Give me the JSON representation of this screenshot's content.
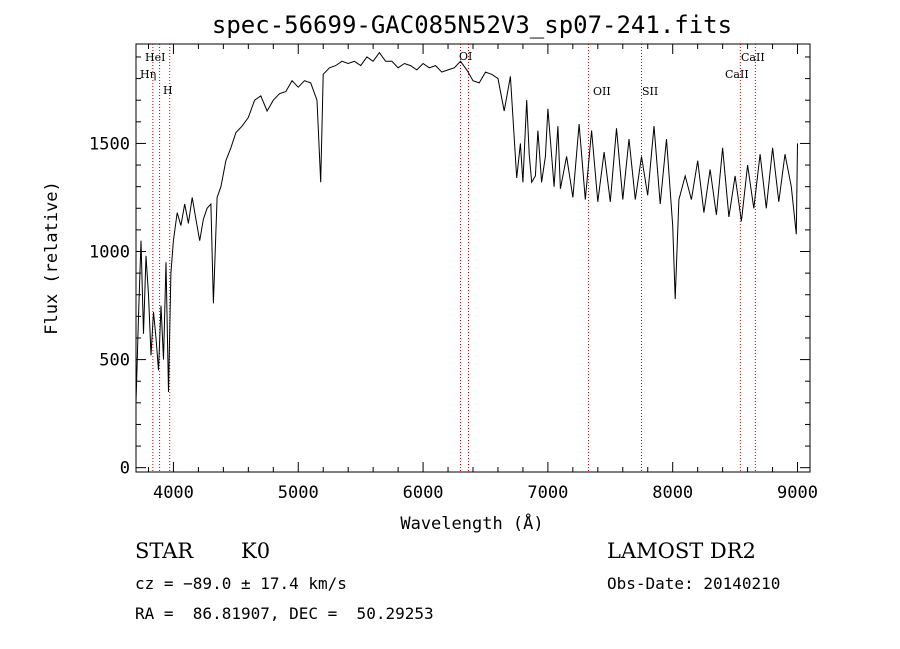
{
  "chart_data": {
    "type": "line",
    "title": "spec-56699-GAC085N52V3_sp07-241.fits",
    "xlabel": "Wavelength (Å)",
    "ylabel": "Flux (relative)",
    "xlim": [
      3700,
      9100
    ],
    "ylim": [
      -20,
      1960
    ],
    "xticks": [
      4000,
      5000,
      6000,
      7000,
      8000,
      9000
    ],
    "yticks": [
      0,
      500,
      1000,
      1500
    ],
    "spectrum": {
      "x": [
        3700,
        3720,
        3740,
        3760,
        3780,
        3800,
        3820,
        3840,
        3860,
        3880,
        3900,
        3920,
        3940,
        3960,
        3980,
        4000,
        4030,
        4060,
        4090,
        4120,
        4150,
        4180,
        4210,
        4240,
        4270,
        4300,
        4320,
        4350,
        4380,
        4420,
        4460,
        4500,
        4550,
        4600,
        4650,
        4700,
        4750,
        4800,
        4850,
        4900,
        4950,
        5000,
        5050,
        5100,
        5150,
        5180,
        5200,
        5250,
        5300,
        5350,
        5400,
        5450,
        5500,
        5550,
        5600,
        5650,
        5700,
        5750,
        5800,
        5850,
        5900,
        5950,
        6000,
        6050,
        6100,
        6150,
        6200,
        6250,
        6300,
        6350,
        6400,
        6450,
        6500,
        6550,
        6600,
        6650,
        6700,
        6750,
        6780,
        6800,
        6830,
        6850,
        6870,
        6900,
        6920,
        6950,
        6980,
        7000,
        7050,
        7080,
        7100,
        7150,
        7200,
        7250,
        7300,
        7350,
        7400,
        7450,
        7500,
        7550,
        7600,
        7650,
        7700,
        7750,
        7800,
        7850,
        7900,
        7950,
        8000,
        8020,
        8050,
        8100,
        8150,
        8200,
        8250,
        8300,
        8350,
        8400,
        8450,
        8500,
        8550,
        8600,
        8650,
        8700,
        8750,
        8800,
        8850,
        8900,
        8950,
        8990,
        9000
      ],
      "y": [
        300,
        700,
        1050,
        620,
        980,
        800,
        520,
        720,
        600,
        450,
        750,
        500,
        950,
        350,
        900,
        1050,
        1180,
        1120,
        1220,
        1130,
        1250,
        1150,
        1050,
        1150,
        1200,
        1220,
        760,
        1250,
        1300,
        1420,
        1480,
        1550,
        1580,
        1620,
        1700,
        1720,
        1650,
        1700,
        1730,
        1740,
        1790,
        1760,
        1790,
        1780,
        1700,
        1320,
        1820,
        1850,
        1860,
        1880,
        1870,
        1880,
        1860,
        1900,
        1880,
        1920,
        1880,
        1880,
        1850,
        1870,
        1860,
        1840,
        1870,
        1850,
        1860,
        1830,
        1840,
        1850,
        1880,
        1840,
        1790,
        1780,
        1830,
        1820,
        1800,
        1650,
        1810,
        1340,
        1500,
        1320,
        1700,
        1450,
        1320,
        1350,
        1560,
        1320,
        1440,
        1660,
        1300,
        1580,
        1290,
        1440,
        1250,
        1590,
        1240,
        1560,
        1230,
        1460,
        1230,
        1570,
        1240,
        1520,
        1240,
        1440,
        1260,
        1580,
        1220,
        1520,
        1120,
        780,
        1240,
        1350,
        1240,
        1420,
        1180,
        1380,
        1170,
        1480,
        1160,
        1350,
        1140,
        1400,
        1200,
        1450,
        1200,
        1480,
        1230,
        1450,
        1300,
        1080,
        1500
      ]
    },
    "lines": [
      {
        "label": "HeI",
        "x": 3889
      },
      {
        "label": "Hη",
        "x": 3835
      },
      {
        "label": "H",
        "x": 3970
      },
      {
        "label": "OI",
        "x": 6300
      },
      {
        "label": "OI",
        "x": 6364
      },
      {
        "label": "OII",
        "x": 7325
      },
      {
        "label": "SII",
        "x": 7750
      },
      {
        "label": "CaII",
        "x": 8542
      },
      {
        "label": "CaII",
        "x": 8662
      }
    ],
    "line_labels": [
      "HeI",
      "Hη",
      "H",
      "OI",
      "OII",
      "SII",
      "CaII",
      "CaII"
    ],
    "line_color": "#cc0000",
    "grid": false
  },
  "info": {
    "object_class": "STAR",
    "subclass": "K0",
    "survey": "LAMOST DR2",
    "cz": "cz = −89.0 ± 17.4 km/s",
    "obs_date": "Obs-Date: 20140210",
    "radec": "RA =  86.81907, DEC =  50.29253"
  }
}
